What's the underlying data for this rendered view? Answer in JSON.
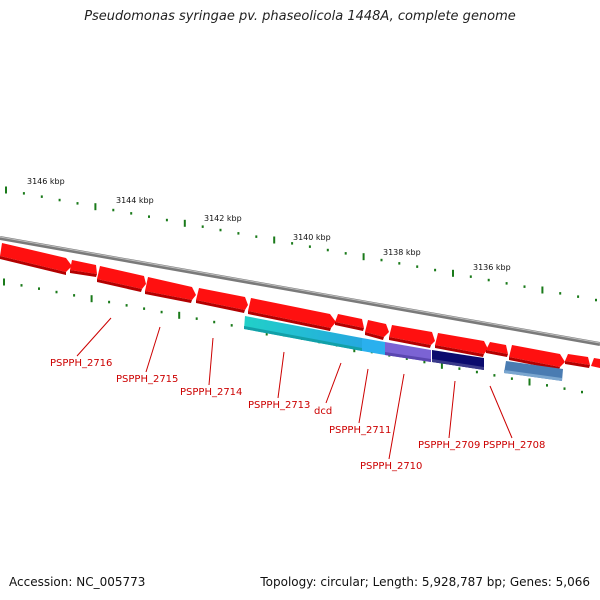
{
  "title": "Pseudomonas syringae pv. phaseolicola 1448A, complete genome",
  "footer": {
    "accession": "Accession: NC_005773",
    "summary": "Topology: circular; Length: 5,928,787 bp; Genes: 5,066"
  },
  "scale_labels": [
    "3146 kbp",
    "3144 kbp",
    "3142 kbp",
    "3140 kbp",
    "3138 kbp",
    "3136 kbp"
  ],
  "gene_labels": [
    "PSPPH_2716",
    "PSPPH_2715",
    "PSPPH_2714",
    "PSPPH_2713",
    "dcd",
    "PSPPH_2711",
    "PSPPH_2710",
    "PSPPH_2709",
    "PSPPH_2708"
  ],
  "colors": {
    "backbone": "#7a7a7a",
    "gene": "#ff0000",
    "gene_shade": "#c00000",
    "tick": "#1a7a1a",
    "label": "#cc0000",
    "feature_cyan": "#22c8d0",
    "feature_blue": "#2aa8e8",
    "feature_purple": "#7a5fd0",
    "feature_navy": "#0a0a70",
    "feature_steel": "#4a7ab0"
  }
}
